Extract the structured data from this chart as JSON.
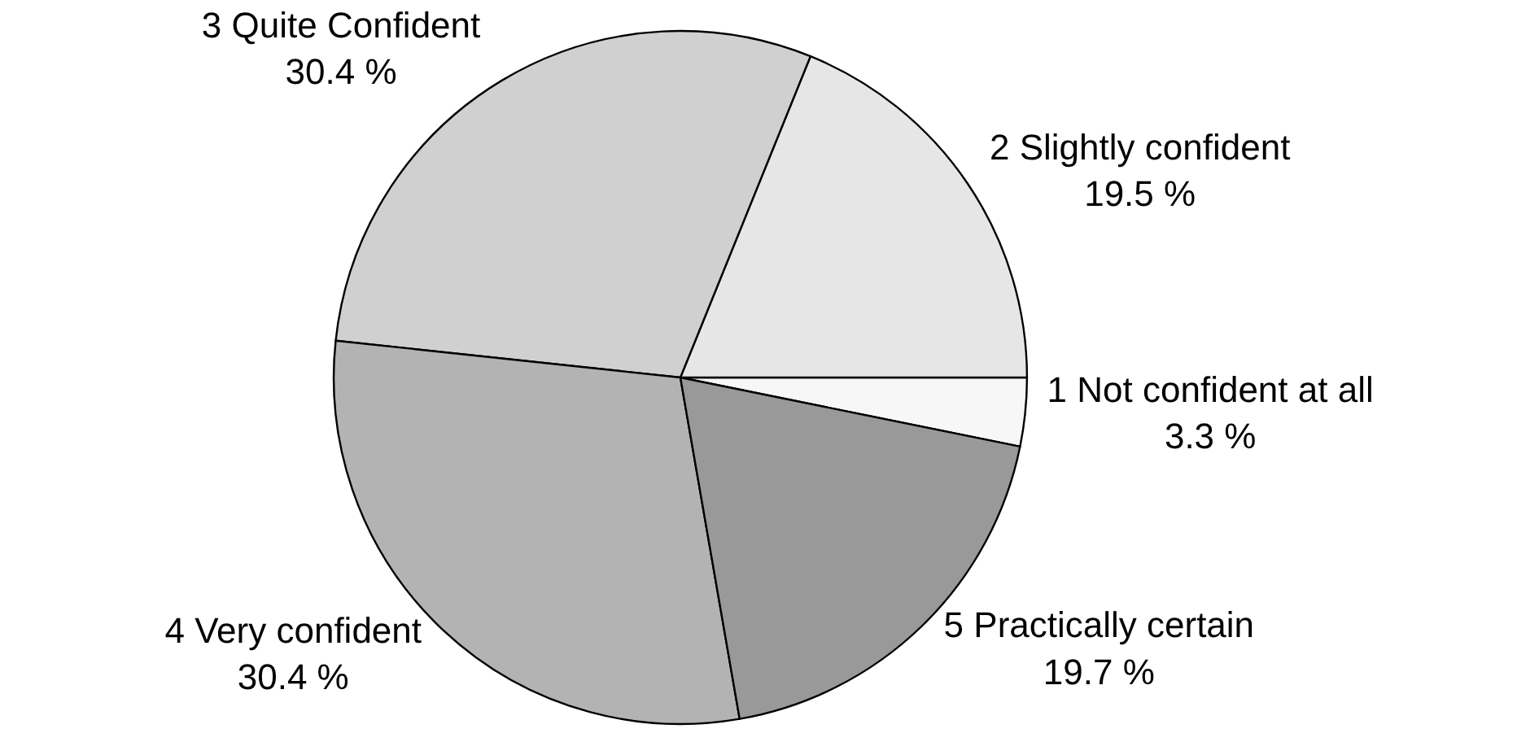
{
  "chart_data": {
    "type": "pie",
    "categories": [
      "1 Not confident at all",
      "2 Slightly confident",
      "3 Quite Confident",
      "4 Very confident",
      "5 Practically certain"
    ],
    "values": [
      3.3,
      19.5,
      30.4,
      30.4,
      19.7
    ],
    "value_labels": [
      "3.3 %",
      "19.5 %",
      "30.4 %",
      "30.4 %",
      "19.7 %"
    ],
    "colors": [
      "#f7f7f7",
      "#e6e6e6",
      "#d0d0d0",
      "#b3b3b3",
      "#999999"
    ],
    "legend": false
  }
}
